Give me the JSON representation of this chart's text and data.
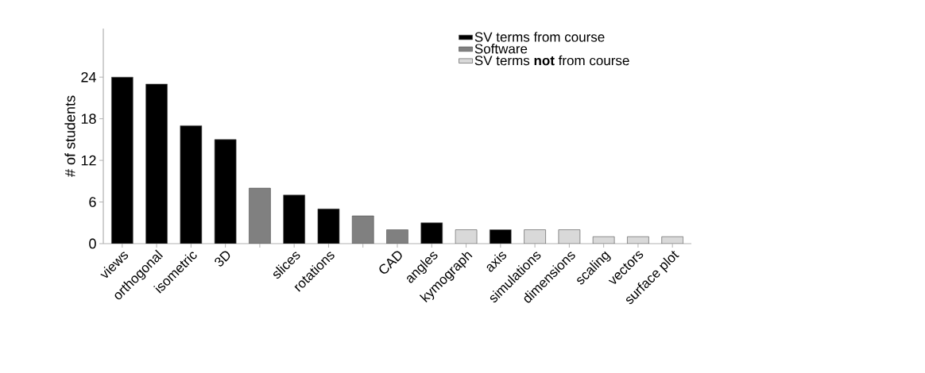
{
  "chart_data": {
    "type": "bar",
    "ylabel": "# of students",
    "categories": [
      "views",
      "orthogonal",
      "isometric",
      "3D",
      null,
      "slices",
      "rotations",
      null,
      "CAD",
      "angles",
      "kymograph",
      "axis",
      "simulations",
      "dimensions",
      "scaling",
      "vectors",
      "surface plot"
    ],
    "series": [
      {
        "name": "SV terms from course",
        "color": "#000000",
        "values": [
          24,
          23,
          17,
          15,
          null,
          7,
          5,
          null,
          null,
          3,
          null,
          2,
          null,
          null,
          null,
          null,
          null
        ]
      },
      {
        "name": "Software",
        "color": "#808080",
        "values": [
          null,
          null,
          null,
          null,
          8,
          null,
          null,
          4,
          2,
          null,
          null,
          null,
          null,
          null,
          null,
          null,
          null
        ]
      },
      {
        "name": "SV terms **not** from course",
        "color": "#d9d9d9",
        "values": [
          null,
          null,
          null,
          null,
          null,
          null,
          null,
          null,
          null,
          null,
          2,
          null,
          2,
          2,
          1,
          1,
          1
        ]
      }
    ],
    "ylim": [
      0,
      31
    ],
    "yticks": [
      0,
      6,
      12,
      18,
      24
    ],
    "legend": "top right",
    "grid": false
  }
}
